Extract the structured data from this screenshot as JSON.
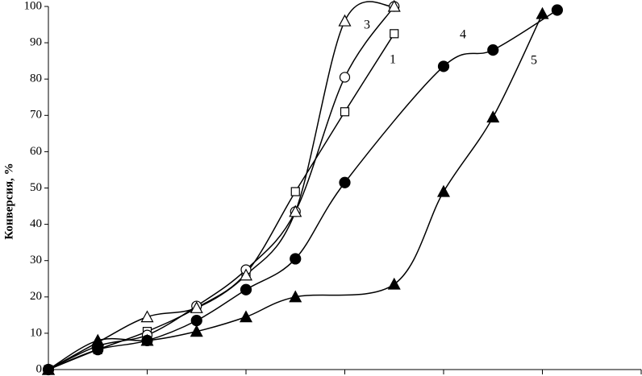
{
  "chart_data": {
    "type": "scatter-curve",
    "y_label": "Конверсия, %",
    "xlim": [
      0,
      6
    ],
    "xticks": [
      0,
      1,
      2,
      3,
      4,
      5,
      6
    ],
    "ylim": [
      0,
      100
    ],
    "yticks": [
      0,
      10,
      20,
      30,
      40,
      50,
      60,
      70,
      80,
      90,
      100
    ],
    "series": [
      {
        "label": "1",
        "marker": "square-open",
        "color": "#000000",
        "x": [
          0,
          0.5,
          1,
          1.5,
          2,
          2.5,
          3,
          3.5
        ],
        "values": [
          0,
          5.5,
          10.5,
          17,
          26.5,
          49,
          71,
          92.5
        ]
      },
      {
        "marker": "circle-open",
        "color": "#000000",
        "x": [
          0,
          0.5,
          1,
          1.5,
          2,
          2.5,
          3,
          3.5
        ],
        "values": [
          0,
          6.5,
          9.5,
          17.5,
          27.5,
          43.5,
          80.5,
          100
        ]
      },
      {
        "label": "3",
        "marker": "triangle-open",
        "color": "#000000",
        "x": [
          0,
          0.5,
          1,
          1.5,
          2,
          2.5,
          3,
          3.5
        ],
        "values": [
          0,
          7.5,
          14.5,
          17,
          26,
          43.5,
          96,
          100
        ]
      },
      {
        "label": "4",
        "marker": "circle-filled",
        "color": "#000000",
        "x": [
          0,
          0.5,
          1,
          1.5,
          2,
          2.5,
          3,
          4,
          4.5,
          5.15
        ],
        "values": [
          0,
          5.5,
          8,
          13.5,
          22,
          30.5,
          51.5,
          83.5,
          88,
          99
        ]
      },
      {
        "label": "5",
        "marker": "triangle-filled",
        "color": "#000000",
        "x": [
          0,
          0.5,
          1,
          1.5,
          2,
          2.5,
          3.5,
          4,
          4.5,
          5
        ],
        "values": [
          0,
          8,
          8,
          10.5,
          14.5,
          20,
          23.5,
          49,
          69.5,
          98
        ]
      }
    ]
  }
}
